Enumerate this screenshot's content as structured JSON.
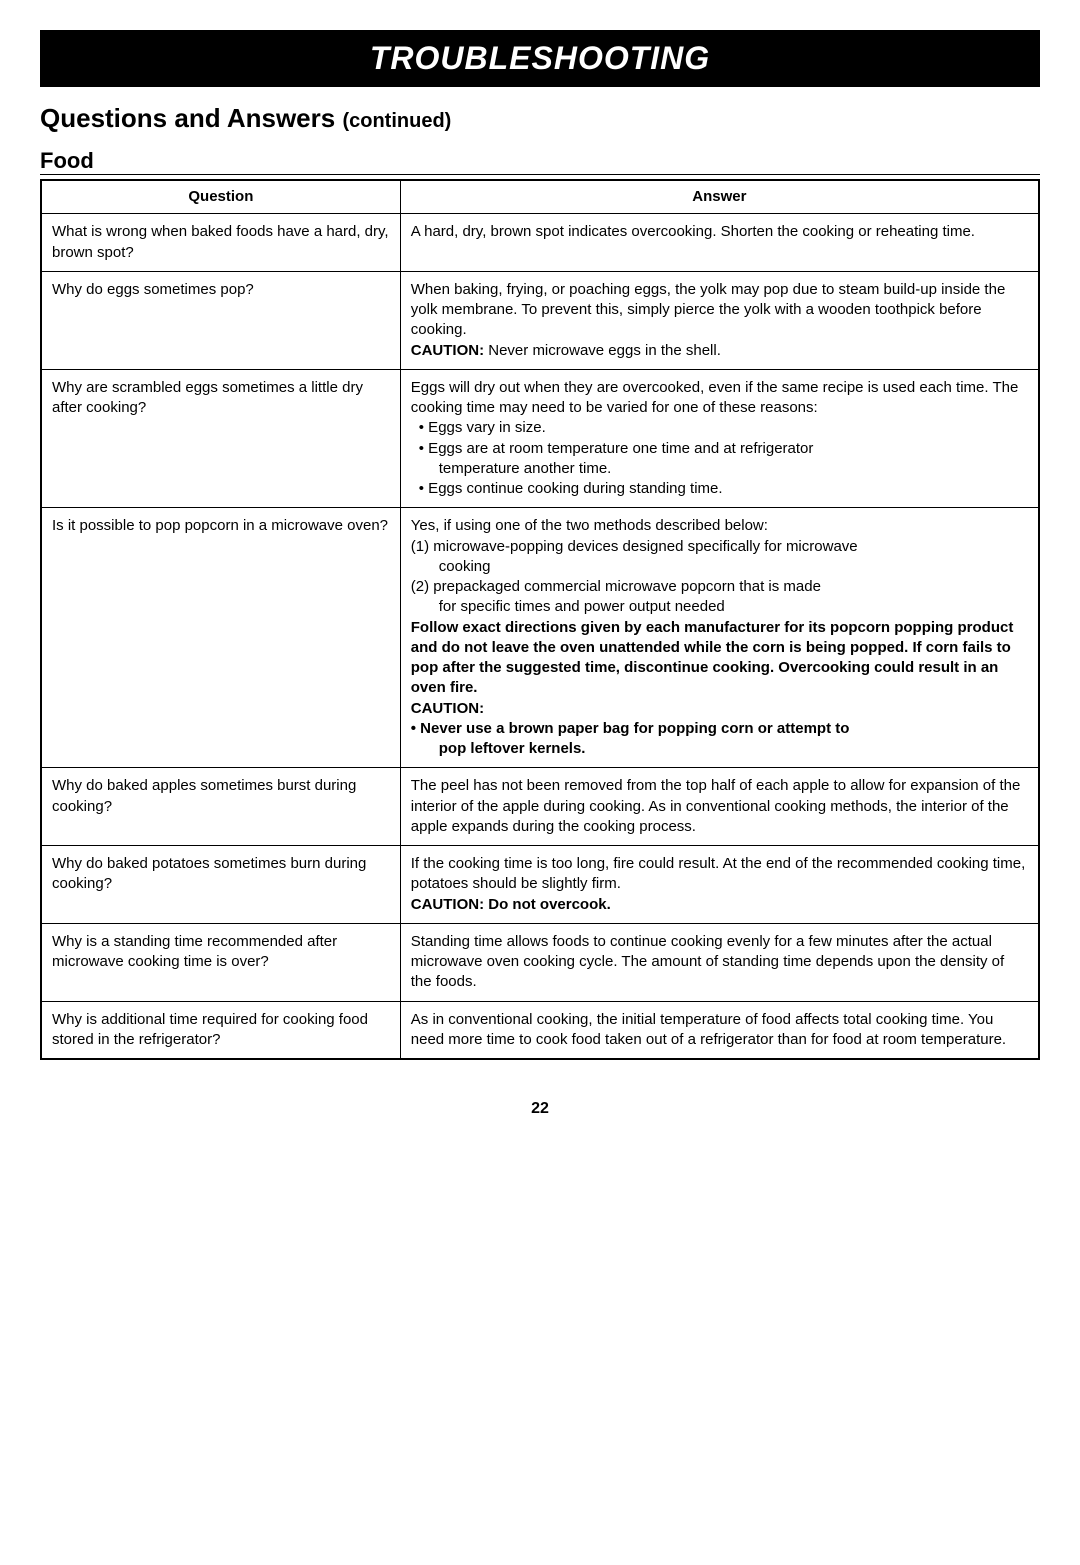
{
  "banner": "TROUBLESHOOTING",
  "title_main": "Questions and Answers",
  "title_cont": "(continued)",
  "subtitle": "Food",
  "th_q": "Question",
  "th_a": "Answer",
  "r1q": "What is wrong when baked foods have a hard, dry, brown spot?",
  "r1a": "A hard, dry, brown spot indicates overcooking. Shorten the cooking or reheating time.",
  "r2q": "Why do eggs sometimes pop?",
  "r2a_1": "When baking, frying, or poaching eggs, the yolk may pop due to steam build-up inside the yolk membrane. To prevent this, simply pierce the yolk with a wooden toothpick before cooking.",
  "r2a_caution_label": "CAUTION:",
  "r2a_caution_text": " Never microwave eggs in the shell.",
  "r3q": "Why are scrambled eggs sometimes a little dry after cooking?",
  "r3a_1": "Eggs will dry out when they are overcooked, even if the same recipe is used each time. The cooking time may need to be varied for one of these reasons:",
  "r3a_b1": "• Eggs vary in size.",
  "r3a_b2": "• Eggs are at room temperature one time and at refrigerator",
  "r3a_b2b": "temperature another time.",
  "r3a_b3": "• Eggs continue cooking during standing time.",
  "r4q": "Is it possible to pop popcorn in a microwave oven?",
  "r4a_1": "Yes, if using one of the two methods described below:",
  "r4a_2": "(1) microwave-popping devices designed specifically for microwave",
  "r4a_2b": "cooking",
  "r4a_3": "(2) prepackaged commercial microwave popcorn that is made",
  "r4a_3b": "for specific times and power output needed",
  "r4a_bold": "Follow exact directions given by each manufacturer for its popcorn popping product and do not leave the oven unattended while the corn is being popped. If corn fails to pop after the suggested time, discontinue cooking. Overcooking could result in an oven fire.",
  "r4a_caution": "CAUTION:",
  "r4a_caution_b": "• Never use a brown paper bag for popping corn or attempt to",
  "r4a_caution_b2": "pop leftover kernels.",
  "r5q": "Why do baked apples sometimes burst during cooking?",
  "r5a": "The peel has not been removed from the top half of each apple to allow for expansion of the interior of the apple during cooking. As in conventional cooking methods, the interior of the apple expands during the cooking process.",
  "r6q": "Why do baked potatoes sometimes burn during cooking?",
  "r6a_1": "If the cooking time is too long, fire could result. At the end of the recommended cooking time, potatoes should be slightly firm.",
  "r6a_caution": "CAUTION: Do not overcook.",
  "r7q": "Why is a standing time recommended after microwave cooking time is over?",
  "r7a": "Standing time allows foods to continue cooking evenly for a few minutes after the actual microwave oven cooking cycle. The amount of standing time depends upon the density of the foods.",
  "r8q": "Why is additional time required for cooking food stored in the refrigerator?",
  "r8a": "As in conventional cooking, the initial temperature of food affects total cooking time. You need more time to cook food taken out of a refrigerator than for food at room temperature.",
  "page": "22"
}
